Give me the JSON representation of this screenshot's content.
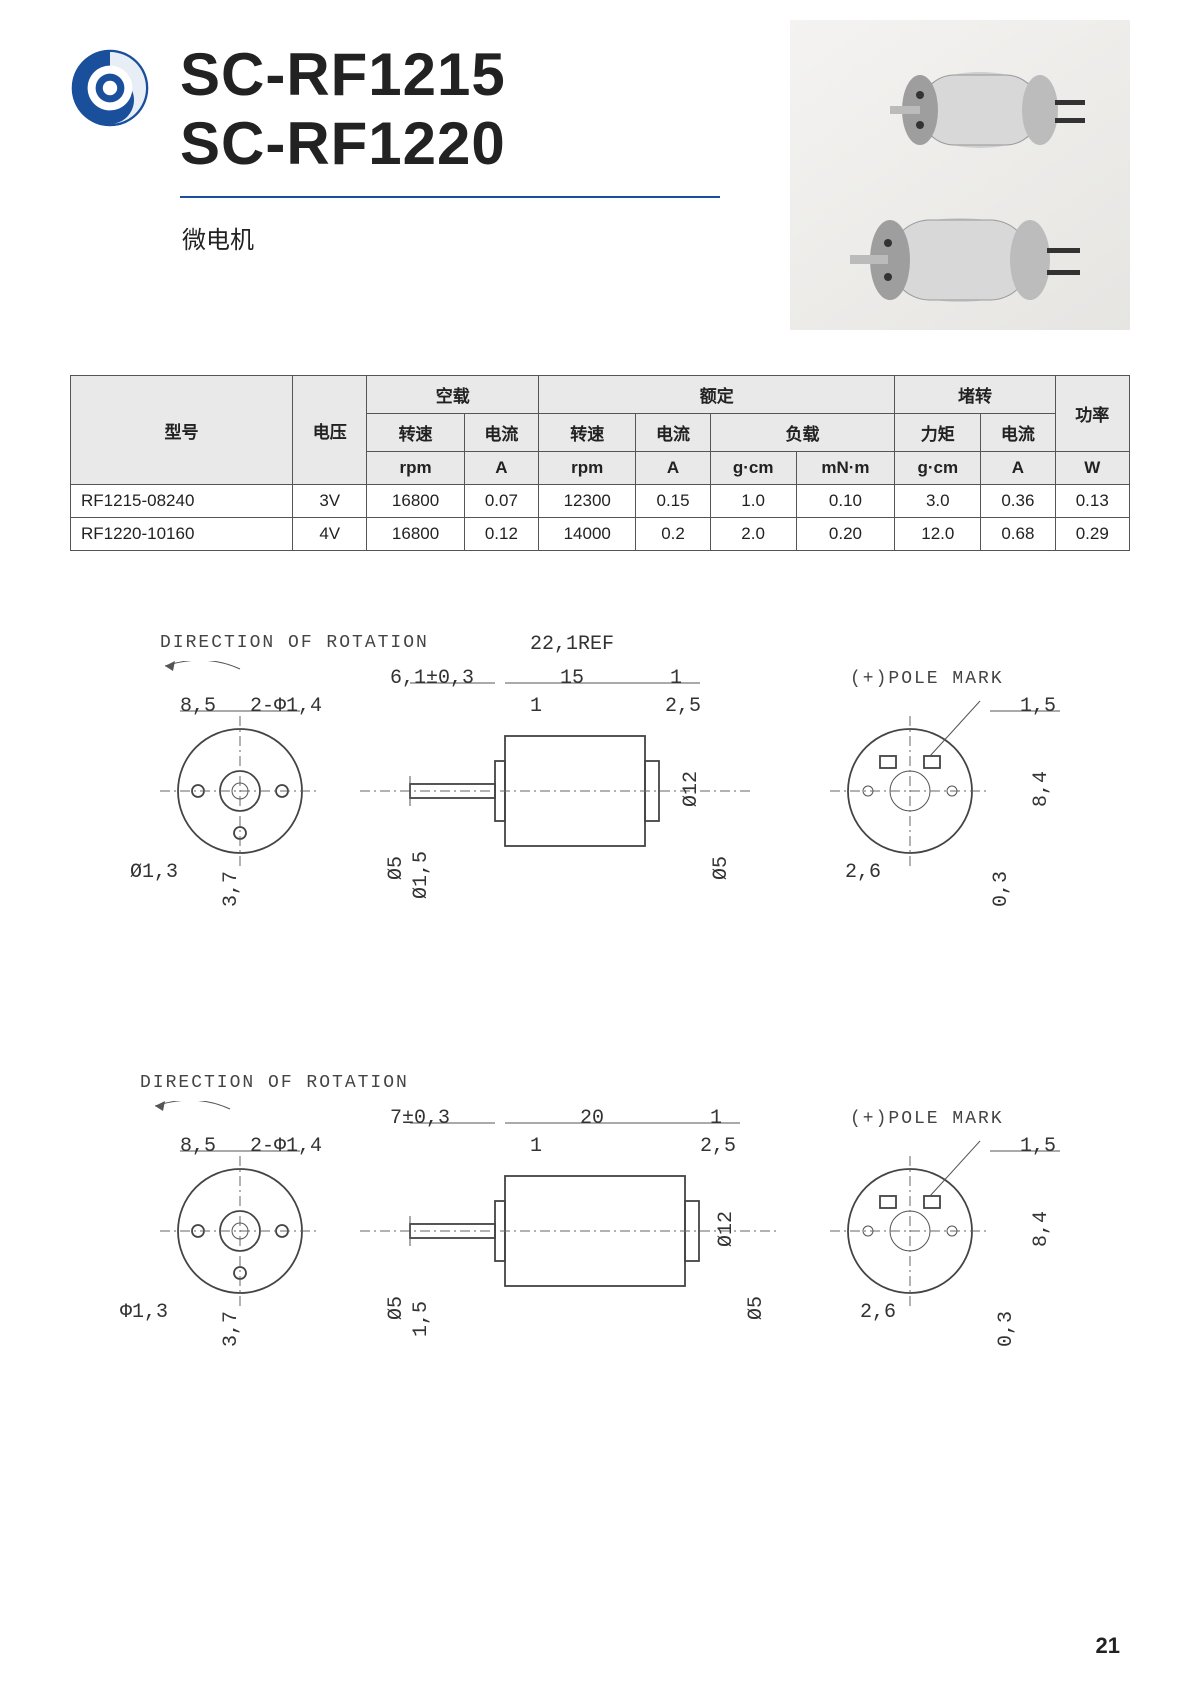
{
  "header": {
    "title1": "SC-RF1215",
    "title2": "SC-RF1220",
    "subtitle": "微电机"
  },
  "table": {
    "group_headers": {
      "model": "型号",
      "voltage": "电压",
      "noload": "空载",
      "rated": "额定",
      "stall": "堵转",
      "power": "功率"
    },
    "sub_headers": {
      "noload_speed": "转速",
      "noload_current": "电流",
      "rated_speed": "转速",
      "rated_current": "电流",
      "rated_load": "负载",
      "stall_torque": "力矩",
      "stall_current": "电流"
    },
    "units": {
      "noload_speed": "rpm",
      "noload_current": "A",
      "rated_speed": "rpm",
      "rated_current": "A",
      "rated_load_gcm": "g·cm",
      "rated_load_mnm": "mN·m",
      "stall_torque": "g·cm",
      "stall_current": "A",
      "power": "W"
    },
    "rows": [
      {
        "model": "RF1215-08240",
        "voltage": "3V",
        "nl_speed": "16800",
        "nl_cur": "0.07",
        "r_speed": "12300",
        "r_cur": "0.15",
        "r_gcm": "1.0",
        "r_mnm": "0.10",
        "s_torque": "3.0",
        "s_cur": "0.36",
        "power": "0.13"
      },
      {
        "model": "RF1220-10160",
        "voltage": "4V",
        "nl_speed": "16800",
        "nl_cur": "0.12",
        "r_speed": "14000",
        "r_cur": "0.2",
        "r_gcm": "2.0",
        "r_mnm": "0.20",
        "s_torque": "12.0",
        "s_cur": "0.68",
        "power": "0.29"
      }
    ]
  },
  "diagrams": {
    "rotation_label": "DIRECTION OF ROTATION",
    "pole_label": "(+)POLE MARK",
    "d1": {
      "top_ref": "22,1REF",
      "len_main": "15",
      "len_end": "1",
      "shaft_len": "6,1±0,3",
      "front_8_5": "8,5",
      "holes": "2-Φ1,4",
      "hole_d": "Ø1,3",
      "v_3_7": "3,7",
      "shaft_d5": "Ø5",
      "shaft_d15": "Ø1,5",
      "body_d12": "Ø12",
      "rear_d5": "Ø5",
      "tab_1": "1",
      "tab_2_5": "2,5",
      "pin_1_5": "1,5",
      "pin_2_6": "2,6",
      "pin_8_4": "8,4",
      "pin_0_3": "0,3"
    },
    "d2": {
      "len_main": "20",
      "len_end": "1",
      "shaft_len": "7±0,3",
      "front_8_5": "8,5",
      "holes": "2-Φ1,4",
      "hole_d": "Φ1,3",
      "v_3_7": "3,7",
      "shaft_d5": "Ø5",
      "shaft_d15": "1,5",
      "body_d12": "Ø12",
      "rear_d5": "Ø5",
      "tab_1": "1",
      "tab_2_5": "2,5",
      "pin_1_5": "1,5",
      "pin_2_6": "2,6",
      "pin_8_4": "8,4",
      "pin_0_3": "0,3"
    }
  },
  "page_number": "21",
  "colors": {
    "accent": "#1a4f9c",
    "header_bg": "#e9e9e9",
    "line": "#555"
  }
}
